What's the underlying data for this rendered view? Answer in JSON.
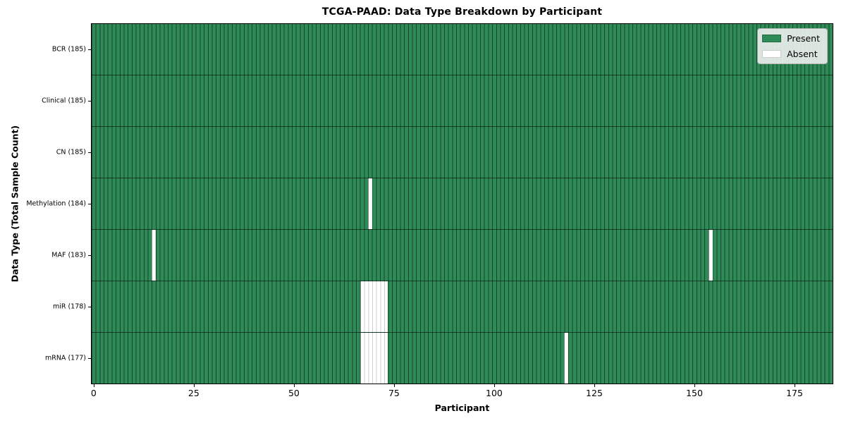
{
  "title": "TCGA-PAAD: Data Type Breakdown by Participant",
  "axes": {
    "xlabel": "Participant",
    "ylabel": "Data Type (Total Sample Count)"
  },
  "legend": {
    "present": "Present",
    "absent": "Absent"
  },
  "colors": {
    "present": "#2E8B57",
    "present_edge": "rgba(0,0,0,0.5)",
    "absent": "#FFFFFF",
    "absent_edge": "#CFCFCF",
    "legend_bg": "#ECEEEC",
    "spine": "#000000"
  },
  "chart_data": {
    "type": "heatmap",
    "title": "TCGA-PAAD: Data Type Breakdown by Participant",
    "xlabel": "Participant",
    "ylabel": "Data Type (Total Sample Count)",
    "legend_entries": [
      "Present",
      "Absent"
    ],
    "legend_position": "upper right",
    "n_participants": 185,
    "x_range": [
      -0.5,
      184.5
    ],
    "x_ticks": [
      0,
      25,
      50,
      75,
      100,
      125,
      150,
      175
    ],
    "grid": false,
    "rows": [
      {
        "data_type": "BCR",
        "label": "BCR (185)",
        "present_count": 185,
        "absent_participants": []
      },
      {
        "data_type": "Clinical",
        "label": "Clinical (185)",
        "present_count": 185,
        "absent_participants": []
      },
      {
        "data_type": "CN",
        "label": "CN (185)",
        "present_count": 185,
        "absent_participants": []
      },
      {
        "data_type": "Methylation",
        "label": "Methylation (184)",
        "present_count": 184,
        "absent_participants": [
          69
        ]
      },
      {
        "data_type": "MAF",
        "label": "MAF (183)",
        "present_count": 183,
        "absent_participants": [
          15,
          154
        ]
      },
      {
        "data_type": "miR",
        "label": "miR (178)",
        "present_count": 178,
        "absent_participants": [
          67,
          68,
          69,
          70,
          71,
          72,
          73
        ]
      },
      {
        "data_type": "mRNA",
        "label": "mRNA (177)",
        "present_count": 177,
        "absent_participants": [
          67,
          68,
          69,
          70,
          71,
          72,
          73,
          118
        ]
      }
    ]
  }
}
